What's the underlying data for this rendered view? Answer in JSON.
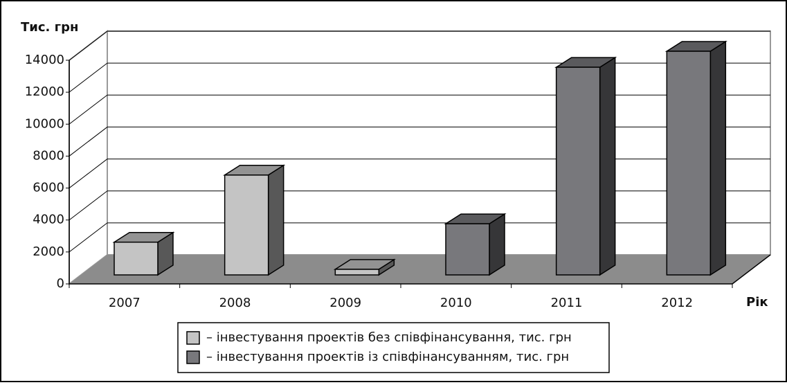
{
  "chart_data": {
    "type": "bar3d",
    "y_label": "Тис. грн",
    "x_label": "Рік",
    "categories": [
      "2007",
      "2008",
      "2009",
      "2010",
      "2011",
      "2012"
    ],
    "series": [
      {
        "name": "– інвестування проектів без співфінансування, тис. грн",
        "color": "#c4c4c4",
        "values": [
          2050,
          6250,
          350,
          null,
          null,
          null
        ]
      },
      {
        "name": "– інвестування проектів із співфінансуванням, тис. грн",
        "color": "#78787c",
        "values": [
          null,
          null,
          null,
          3200,
          13000,
          14000
        ]
      }
    ],
    "ylim": [
      0,
      14000
    ],
    "yticks": [
      0,
      2000,
      4000,
      6000,
      8000,
      10000,
      12000,
      14000
    ],
    "grid": true
  }
}
